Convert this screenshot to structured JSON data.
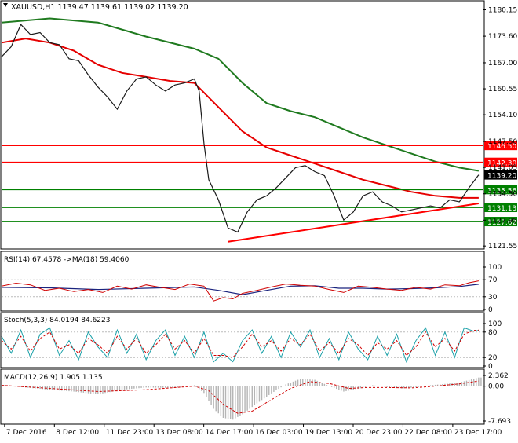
{
  "chart_data": {
    "type": "line",
    "symbol_header": "XAUUSD,H1  1139.47 1139.61 1139.02 1139.20",
    "x_tick_labels": [
      "7 Dec 2016",
      "8 Dec 12:00",
      "11 Dec 23:00",
      "13 Dec 08:00",
      "14 Dec 17:00",
      "16 Dec 03:00",
      "19 Dec 13:00",
      "20 Dec 23:00",
      "22 Dec 08:00",
      "23 Dec 17:00"
    ],
    "price_panel": {
      "y_tick_labels": [
        "1180.15",
        "1173.60",
        "1167.00",
        "1160.55",
        "1154.10",
        "1147.50",
        "1141.05",
        "1134.50",
        "1127.95",
        "1121.55"
      ],
      "ylim": [
        1121.0,
        1182.0
      ],
      "current_price": {
        "label": "1139.20",
        "value": 1139.2
      },
      "horizontal_levels": [
        {
          "label": "1146.50",
          "value": 1146.5,
          "color": "#ff0000"
        },
        {
          "label": "1142.30",
          "value": 1142.3,
          "color": "#ff0000"
        },
        {
          "label": "1135.56",
          "value": 1135.56,
          "color": "#008000"
        },
        {
          "label": "1131.13",
          "value": 1131.13,
          "color": "#008000"
        },
        {
          "label": "1127.62",
          "value": 1127.62,
          "color": "#008000"
        }
      ],
      "trendline": {
        "from": [
          0.47,
          1122.6
        ],
        "to": [
          0.99,
          1132.1
        ],
        "color": "#ff0000"
      },
      "price_path": [
        [
          0.0,
          1168.5
        ],
        [
          0.02,
          1171.0
        ],
        [
          0.04,
          1176.5
        ],
        [
          0.06,
          1174.0
        ],
        [
          0.08,
          1174.5
        ],
        [
          0.1,
          1172.0
        ],
        [
          0.12,
          1171.5
        ],
        [
          0.14,
          1168.0
        ],
        [
          0.16,
          1167.5
        ],
        [
          0.18,
          1164.0
        ],
        [
          0.2,
          1161.0
        ],
        [
          0.22,
          1158.5
        ],
        [
          0.24,
          1155.5
        ],
        [
          0.26,
          1160.0
        ],
        [
          0.28,
          1163.0
        ],
        [
          0.3,
          1163.5
        ],
        [
          0.32,
          1161.5
        ],
        [
          0.34,
          1160.0
        ],
        [
          0.36,
          1161.5
        ],
        [
          0.38,
          1162.0
        ],
        [
          0.4,
          1163.0
        ],
        [
          0.41,
          1160.0
        ],
        [
          0.42,
          1147.0
        ],
        [
          0.43,
          1138.0
        ],
        [
          0.45,
          1133.0
        ],
        [
          0.47,
          1126.0
        ],
        [
          0.49,
          1125.0
        ],
        [
          0.51,
          1130.0
        ],
        [
          0.53,
          1133.0
        ],
        [
          0.55,
          1134.0
        ],
        [
          0.57,
          1136.0
        ],
        [
          0.59,
          1138.5
        ],
        [
          0.61,
          1141.0
        ],
        [
          0.63,
          1141.5
        ],
        [
          0.65,
          1140.0
        ],
        [
          0.67,
          1139.0
        ],
        [
          0.69,
          1134.0
        ],
        [
          0.71,
          1128.0
        ],
        [
          0.73,
          1130.0
        ],
        [
          0.75,
          1134.0
        ],
        [
          0.77,
          1135.0
        ],
        [
          0.79,
          1132.5
        ],
        [
          0.81,
          1131.5
        ],
        [
          0.83,
          1130.0
        ],
        [
          0.85,
          1130.5
        ],
        [
          0.87,
          1131.0
        ],
        [
          0.89,
          1131.5
        ],
        [
          0.91,
          1131.0
        ],
        [
          0.93,
          1133.0
        ],
        [
          0.95,
          1132.5
        ],
        [
          0.97,
          1136.0
        ],
        [
          0.99,
          1139.2
        ]
      ],
      "ma_slow_path": [
        [
          0.0,
          1177.0
        ],
        [
          0.1,
          1178.0
        ],
        [
          0.2,
          1177.0
        ],
        [
          0.3,
          1173.5
        ],
        [
          0.4,
          1170.5
        ],
        [
          0.45,
          1168.0
        ],
        [
          0.5,
          1162.0
        ],
        [
          0.55,
          1157.0
        ],
        [
          0.6,
          1155.0
        ],
        [
          0.65,
          1153.5
        ],
        [
          0.7,
          1151.0
        ],
        [
          0.75,
          1148.5
        ],
        [
          0.8,
          1146.5
        ],
        [
          0.85,
          1144.5
        ],
        [
          0.9,
          1142.5
        ],
        [
          0.95,
          1141.0
        ],
        [
          0.99,
          1140.2
        ]
      ],
      "ma_mid_path": [
        [
          0.0,
          1172.0
        ],
        [
          0.05,
          1173.0
        ],
        [
          0.1,
          1172.0
        ],
        [
          0.15,
          1170.0
        ],
        [
          0.2,
          1166.5
        ],
        [
          0.25,
          1164.5
        ],
        [
          0.3,
          1163.5
        ],
        [
          0.35,
          1162.5
        ],
        [
          0.4,
          1162.0
        ],
        [
          0.45,
          1156.0
        ],
        [
          0.5,
          1150.0
        ],
        [
          0.55,
          1146.0
        ],
        [
          0.6,
          1144.0
        ],
        [
          0.65,
          1142.0
        ],
        [
          0.7,
          1140.0
        ],
        [
          0.75,
          1138.0
        ],
        [
          0.8,
          1136.5
        ],
        [
          0.85,
          1135.0
        ],
        [
          0.9,
          1134.0
        ],
        [
          0.95,
          1133.5
        ],
        [
          0.99,
          1133.5
        ]
      ]
    },
    "rsi_panel": {
      "label": "RSI(14) 67.4578  ->MA(18) 59.4060",
      "y_tick_labels": [
        "100",
        "70",
        "30",
        "0"
      ],
      "ylim": [
        0,
        100
      ],
      "rsi_path": [
        [
          0.0,
          55
        ],
        [
          0.03,
          62
        ],
        [
          0.06,
          58
        ],
        [
          0.09,
          45
        ],
        [
          0.12,
          50
        ],
        [
          0.15,
          42
        ],
        [
          0.18,
          47
        ],
        [
          0.21,
          40
        ],
        [
          0.24,
          55
        ],
        [
          0.27,
          48
        ],
        [
          0.3,
          58
        ],
        [
          0.33,
          52
        ],
        [
          0.36,
          47
        ],
        [
          0.39,
          60
        ],
        [
          0.42,
          55
        ],
        [
          0.44,
          20
        ],
        [
          0.46,
          28
        ],
        [
          0.48,
          25
        ],
        [
          0.5,
          38
        ],
        [
          0.53,
          45
        ],
        [
          0.56,
          53
        ],
        [
          0.59,
          60
        ],
        [
          0.62,
          57
        ],
        [
          0.65,
          55
        ],
        [
          0.68,
          47
        ],
        [
          0.71,
          40
        ],
        [
          0.74,
          55
        ],
        [
          0.77,
          52
        ],
        [
          0.8,
          48
        ],
        [
          0.83,
          45
        ],
        [
          0.86,
          52
        ],
        [
          0.89,
          48
        ],
        [
          0.92,
          58
        ],
        [
          0.95,
          56
        ],
        [
          0.97,
          63
        ],
        [
          0.99,
          67.5
        ]
      ],
      "ma_path": [
        [
          0.0,
          52
        ],
        [
          0.1,
          51
        ],
        [
          0.2,
          47
        ],
        [
          0.3,
          50
        ],
        [
          0.4,
          53
        ],
        [
          0.45,
          45
        ],
        [
          0.5,
          35
        ],
        [
          0.55,
          45
        ],
        [
          0.6,
          55
        ],
        [
          0.65,
          56
        ],
        [
          0.7,
          50
        ],
        [
          0.75,
          50
        ],
        [
          0.8,
          48
        ],
        [
          0.85,
          49
        ],
        [
          0.9,
          51
        ],
        [
          0.95,
          54
        ],
        [
          0.99,
          59.4
        ]
      ]
    },
    "stoch_panel": {
      "label": "Stoch(5,3,3) 84.0194 84.6223",
      "y_tick_labels": [
        "100",
        "80",
        "20",
        "0"
      ],
      "ylim": [
        0,
        100
      ],
      "main_path": [
        [
          0.0,
          70
        ],
        [
          0.02,
          30
        ],
        [
          0.04,
          85
        ],
        [
          0.06,
          20
        ],
        [
          0.08,
          75
        ],
        [
          0.1,
          90
        ],
        [
          0.12,
          25
        ],
        [
          0.14,
          60
        ],
        [
          0.16,
          15
        ],
        [
          0.18,
          80
        ],
        [
          0.2,
          45
        ],
        [
          0.22,
          20
        ],
        [
          0.24,
          85
        ],
        [
          0.26,
          30
        ],
        [
          0.28,
          75
        ],
        [
          0.3,
          15
        ],
        [
          0.32,
          60
        ],
        [
          0.34,
          85
        ],
        [
          0.36,
          25
        ],
        [
          0.38,
          70
        ],
        [
          0.4,
          20
        ],
        [
          0.42,
          80
        ],
        [
          0.44,
          10
        ],
        [
          0.46,
          30
        ],
        [
          0.48,
          10
        ],
        [
          0.5,
          60
        ],
        [
          0.52,
          85
        ],
        [
          0.54,
          30
        ],
        [
          0.56,
          70
        ],
        [
          0.58,
          20
        ],
        [
          0.6,
          80
        ],
        [
          0.62,
          45
        ],
        [
          0.64,
          85
        ],
        [
          0.66,
          20
        ],
        [
          0.68,
          65
        ],
        [
          0.7,
          15
        ],
        [
          0.72,
          80
        ],
        [
          0.74,
          40
        ],
        [
          0.76,
          15
        ],
        [
          0.78,
          70
        ],
        [
          0.8,
          25
        ],
        [
          0.82,
          75
        ],
        [
          0.84,
          10
        ],
        [
          0.86,
          60
        ],
        [
          0.88,
          90
        ],
        [
          0.9,
          25
        ],
        [
          0.92,
          80
        ],
        [
          0.94,
          20
        ],
        [
          0.96,
          90
        ],
        [
          0.98,
          82
        ],
        [
          0.99,
          84
        ]
      ],
      "signal_path": [
        [
          0.0,
          60
        ],
        [
          0.02,
          40
        ],
        [
          0.04,
          70
        ],
        [
          0.06,
          35
        ],
        [
          0.08,
          65
        ],
        [
          0.1,
          80
        ],
        [
          0.12,
          40
        ],
        [
          0.14,
          50
        ],
        [
          0.16,
          30
        ],
        [
          0.18,
          65
        ],
        [
          0.2,
          50
        ],
        [
          0.22,
          30
        ],
        [
          0.24,
          70
        ],
        [
          0.26,
          40
        ],
        [
          0.28,
          65
        ],
        [
          0.3,
          30
        ],
        [
          0.32,
          50
        ],
        [
          0.34,
          75
        ],
        [
          0.36,
          40
        ],
        [
          0.38,
          60
        ],
        [
          0.4,
          30
        ],
        [
          0.42,
          65
        ],
        [
          0.44,
          25
        ],
        [
          0.46,
          25
        ],
        [
          0.48,
          20
        ],
        [
          0.5,
          45
        ],
        [
          0.52,
          75
        ],
        [
          0.54,
          45
        ],
        [
          0.56,
          60
        ],
        [
          0.58,
          35
        ],
        [
          0.6,
          65
        ],
        [
          0.62,
          50
        ],
        [
          0.64,
          75
        ],
        [
          0.66,
          35
        ],
        [
          0.68,
          55
        ],
        [
          0.7,
          30
        ],
        [
          0.72,
          65
        ],
        [
          0.74,
          50
        ],
        [
          0.76,
          25
        ],
        [
          0.78,
          55
        ],
        [
          0.8,
          40
        ],
        [
          0.82,
          60
        ],
        [
          0.84,
          25
        ],
        [
          0.86,
          45
        ],
        [
          0.88,
          80
        ],
        [
          0.9,
          45
        ],
        [
          0.92,
          65
        ],
        [
          0.94,
          35
        ],
        [
          0.96,
          75
        ],
        [
          0.98,
          84
        ],
        [
          0.99,
          84.6
        ]
      ]
    },
    "macd_panel": {
      "label": "MACD(12,26,9) 1.905 1.135",
      "y_tick_labels": [
        "2.362",
        "0.00",
        "-7.693"
      ],
      "ylim": [
        -7.693,
        2.362
      ],
      "histogram_path": [
        [
          0.0,
          0.3
        ],
        [
          0.05,
          -0.3
        ],
        [
          0.1,
          -0.8
        ],
        [
          0.15,
          -1.2
        ],
        [
          0.2,
          -1.8
        ],
        [
          0.25,
          -0.8
        ],
        [
          0.3,
          -0.3
        ],
        [
          0.35,
          -0.4
        ],
        [
          0.4,
          0.2
        ],
        [
          0.42,
          -1.5
        ],
        [
          0.44,
          -5.0
        ],
        [
          0.46,
          -7.0
        ],
        [
          0.48,
          -7.4
        ],
        [
          0.5,
          -6.2
        ],
        [
          0.53,
          -3.8
        ],
        [
          0.56,
          -1.6
        ],
        [
          0.59,
          0.4
        ],
        [
          0.62,
          1.6
        ],
        [
          0.65,
          1.4
        ],
        [
          0.68,
          0.0
        ],
        [
          0.71,
          -1.2
        ],
        [
          0.74,
          -0.6
        ],
        [
          0.77,
          0.2
        ],
        [
          0.8,
          -0.2
        ],
        [
          0.83,
          -0.5
        ],
        [
          0.86,
          -0.3
        ],
        [
          0.89,
          0.2
        ],
        [
          0.92,
          0.5
        ],
        [
          0.95,
          0.8
        ],
        [
          0.99,
          1.9
        ]
      ],
      "signal_path": [
        [
          0.0,
          0.2
        ],
        [
          0.1,
          -0.5
        ],
        [
          0.2,
          -1.2
        ],
        [
          0.3,
          -0.8
        ],
        [
          0.4,
          0.0
        ],
        [
          0.43,
          -1.0
        ],
        [
          0.46,
          -4.0
        ],
        [
          0.49,
          -6.0
        ],
        [
          0.52,
          -5.5
        ],
        [
          0.56,
          -3.0
        ],
        [
          0.6,
          -0.5
        ],
        [
          0.64,
          1.0
        ],
        [
          0.68,
          0.6
        ],
        [
          0.72,
          -0.5
        ],
        [
          0.76,
          -0.3
        ],
        [
          0.8,
          -0.3
        ],
        [
          0.85,
          -0.4
        ],
        [
          0.9,
          0.0
        ],
        [
          0.95,
          0.5
        ],
        [
          0.99,
          1.135
        ]
      ]
    }
  }
}
